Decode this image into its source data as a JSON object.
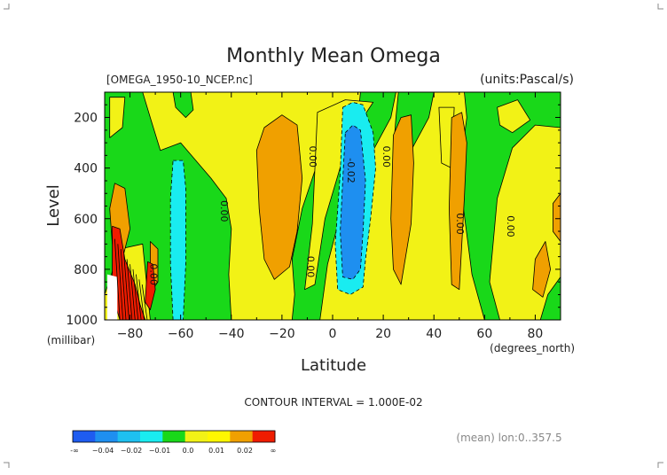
{
  "chart_data": {
    "type": "heatmap",
    "title": "Monthly Mean Omega",
    "source_label": "[OMEGA_1950-10_NCEP.nc]",
    "units_label": "(units:Pascal/s)",
    "xlabel": "Latitude",
    "x_units": "(degrees_north)",
    "ylabel": "Level",
    "y_units": "(millibar)",
    "xlim": [
      -90,
      90
    ],
    "ylim": [
      1000,
      100
    ],
    "x_ticks": [
      -80,
      -60,
      -40,
      -20,
      0,
      20,
      40,
      60,
      80
    ],
    "y_ticks": [
      200,
      400,
      600,
      800,
      1000
    ],
    "contour_interval_text": "CONTOUR INTERVAL = 1.000E-02",
    "footer_note": "(mean) lon:0..357.5",
    "colorbar": {
      "colors": [
        "#1e5cf0",
        "#1e8ff0",
        "#1ec0f0",
        "#19ecf0",
        "#19d819",
        "#f2f216",
        "#fff700",
        "#f0a000",
        "#ef1c00"
      ],
      "tick_labels": [
        "-∞",
        "−0.04",
        "−0.02",
        "−0.01",
        "0.0",
        "0.01",
        "0.02",
        "∞"
      ]
    },
    "contour_labels": [
      {
        "text": "0.00",
        "lat": -43,
        "lev": 570
      },
      {
        "text": "0.00",
        "lat": -8,
        "lev": 355
      },
      {
        "text": "-0.02",
        "lat": 7,
        "lev": 410
      },
      {
        "text": "0.00",
        "lat": 21,
        "lev": 355
      },
      {
        "text": "0.00",
        "lat": -9,
        "lev": 790
      },
      {
        "text": "0.00",
        "lat": 50,
        "lev": 620
      },
      {
        "text": "0.00",
        "lat": 70,
        "lev": 630
      },
      {
        "text": "0.00",
        "lat": -71,
        "lev": 820
      }
    ],
    "regions": [
      {
        "level": "yellow",
        "points": [
          [
            -90,
            100
          ],
          [
            90,
            100
          ],
          [
            90,
            1000
          ],
          [
            -90,
            1000
          ]
        ]
      },
      {
        "level": "green",
        "points": [
          [
            -90,
            100
          ],
          [
            -75,
            100
          ],
          [
            -72,
            200
          ],
          [
            -68,
            330
          ],
          [
            -60,
            300
          ],
          [
            -48,
            440
          ],
          [
            -42,
            520
          ],
          [
            -40,
            640
          ],
          [
            -41,
            820
          ],
          [
            -40,
            1000
          ],
          [
            -90,
            1000
          ]
        ]
      },
      {
        "level": "green",
        "points": [
          [
            -63,
            100
          ],
          [
            -56,
            100
          ],
          [
            -55,
            170
          ],
          [
            -58,
            200
          ],
          [
            -62,
            160
          ]
        ]
      },
      {
        "level": "green",
        "points": [
          [
            -24,
            100
          ],
          [
            11,
            100
          ],
          [
            10,
            200
          ],
          [
            -1,
            270
          ],
          [
            -6,
            380
          ],
          [
            -12,
            560
          ],
          [
            -16,
            760
          ],
          [
            -15,
            900
          ],
          [
            -16,
            1000
          ],
          [
            -5,
            1000
          ],
          [
            -2,
            780
          ],
          [
            5,
            510
          ],
          [
            16,
            330
          ],
          [
            23,
            200
          ],
          [
            25,
            100
          ]
        ]
      },
      {
        "level": "green",
        "points": [
          [
            26,
            100
          ],
          [
            40,
            100
          ],
          [
            38,
            200
          ],
          [
            31,
            330
          ],
          [
            24,
            330
          ],
          [
            25,
            200
          ]
        ]
      },
      {
        "level": "green",
        "points": [
          [
            52,
            100
          ],
          [
            90,
            100
          ],
          [
            90,
            240
          ],
          [
            80,
            230
          ],
          [
            71,
            320
          ],
          [
            65,
            520
          ],
          [
            62,
            850
          ],
          [
            66,
            1000
          ],
          [
            60,
            1000
          ],
          [
            55,
            820
          ],
          [
            50,
            430
          ],
          [
            53,
            200
          ]
        ]
      },
      {
        "level": "green",
        "points": [
          [
            90,
            830
          ],
          [
            90,
            1000
          ],
          [
            82,
            1000
          ],
          [
            85,
            900
          ]
        ]
      },
      {
        "level": "yellow",
        "points": [
          [
            -84,
            720
          ],
          [
            -75,
            700
          ],
          [
            -72,
            1000
          ],
          [
            -90,
            1000
          ],
          [
            -90,
            900
          ]
        ]
      },
      {
        "level": "yellow",
        "points": [
          [
            -88,
            120
          ],
          [
            -82,
            120
          ],
          [
            -83,
            240
          ],
          [
            -88,
            280
          ]
        ]
      },
      {
        "level": "yellow",
        "points": [
          [
            -6,
            180
          ],
          [
            5,
            130
          ],
          [
            16,
            140
          ],
          [
            12,
            200
          ],
          [
            5,
            330
          ],
          [
            -3,
            600
          ],
          [
            -7,
            860
          ],
          [
            -11,
            880
          ],
          [
            -8,
            620
          ]
        ]
      },
      {
        "level": "yellow",
        "points": [
          [
            42,
            160
          ],
          [
            48,
            160
          ],
          [
            47,
            400
          ],
          [
            43,
            380
          ]
        ]
      },
      {
        "level": "yellow",
        "points": [
          [
            65,
            160
          ],
          [
            73,
            130
          ],
          [
            78,
            210
          ],
          [
            71,
            260
          ],
          [
            66,
            230
          ]
        ]
      },
      {
        "level": "orange",
        "points": [
          [
            -86,
            460
          ],
          [
            -82,
            480
          ],
          [
            -80,
            640
          ],
          [
            -83,
            760
          ],
          [
            -87,
            700
          ],
          [
            -88,
            560
          ]
        ]
      },
      {
        "level": "orange",
        "points": [
          [
            -72,
            690
          ],
          [
            -69,
            720
          ],
          [
            -69,
            850
          ],
          [
            -71,
            880
          ],
          [
            -72,
            820
          ]
        ]
      },
      {
        "level": "orange",
        "points": [
          [
            -30,
            330
          ],
          [
            -27,
            240
          ],
          [
            -20,
            190
          ],
          [
            -14,
            230
          ],
          [
            -12,
            440
          ],
          [
            -14,
            650
          ],
          [
            -17,
            790
          ],
          [
            -23,
            840
          ],
          [
            -27,
            760
          ],
          [
            -29,
            560
          ]
        ]
      },
      {
        "level": "orange",
        "points": [
          [
            24,
            270
          ],
          [
            27,
            200
          ],
          [
            31,
            190
          ],
          [
            32,
            380
          ],
          [
            31,
            620
          ],
          [
            27,
            860
          ],
          [
            24,
            800
          ],
          [
            23,
            600
          ]
        ]
      },
      {
        "level": "orange",
        "points": [
          [
            47,
            200
          ],
          [
            51,
            180
          ],
          [
            53,
            300
          ],
          [
            52,
            520
          ],
          [
            50,
            880
          ],
          [
            47,
            860
          ],
          [
            46,
            560
          ]
        ]
      },
      {
        "level": "orange",
        "points": [
          [
            80,
            760
          ],
          [
            84,
            690
          ],
          [
            86,
            800
          ],
          [
            83,
            910
          ],
          [
            79,
            880
          ]
        ]
      },
      {
        "level": "orange",
        "points": [
          [
            90,
            500
          ],
          [
            87,
            540
          ],
          [
            87,
            650
          ],
          [
            90,
            690
          ]
        ]
      },
      {
        "level": "cyan",
        "points": [
          [
            -63,
            370
          ],
          [
            -59,
            370
          ],
          [
            -58,
            480
          ],
          [
            -58,
            780
          ],
          [
            -59,
            1000
          ],
          [
            -63,
            1000
          ],
          [
            -64,
            780
          ],
          [
            -64,
            520
          ]
        ]
      },
      {
        "level": "cyan",
        "points": [
          [
            4,
            160
          ],
          [
            8,
            140
          ],
          [
            12,
            150
          ],
          [
            16,
            260
          ],
          [
            17,
            400
          ],
          [
            15,
            600
          ],
          [
            13,
            760
          ],
          [
            12,
            870
          ],
          [
            7,
            900
          ],
          [
            2,
            880
          ],
          [
            1,
            700
          ],
          [
            3,
            420
          ]
        ]
      },
      {
        "level": "blue",
        "points": [
          [
            5,
            260
          ],
          [
            8,
            230
          ],
          [
            11,
            250
          ],
          [
            13,
            450
          ],
          [
            12,
            650
          ],
          [
            11,
            800
          ],
          [
            8,
            840
          ],
          [
            4,
            830
          ],
          [
            3,
            650
          ],
          [
            4,
            450
          ]
        ]
      },
      {
        "level": "red",
        "points": [
          [
            -87,
            630
          ],
          [
            -84,
            640
          ],
          [
            -82,
            760
          ],
          [
            -78,
            860
          ],
          [
            -76,
            940
          ],
          [
            -74,
            1000
          ],
          [
            -84,
            1000
          ],
          [
            -87,
            900
          ]
        ]
      },
      {
        "level": "red",
        "points": [
          [
            -73,
            770
          ],
          [
            -71,
            780
          ],
          [
            -70,
            880
          ],
          [
            -72,
            960
          ],
          [
            -74,
            930
          ]
        ]
      },
      {
        "level": "white",
        "points": [
          [
            -89,
            820
          ],
          [
            -85,
            830
          ],
          [
            -85,
            1000
          ],
          [
            -89,
            1000
          ]
        ]
      }
    ]
  }
}
